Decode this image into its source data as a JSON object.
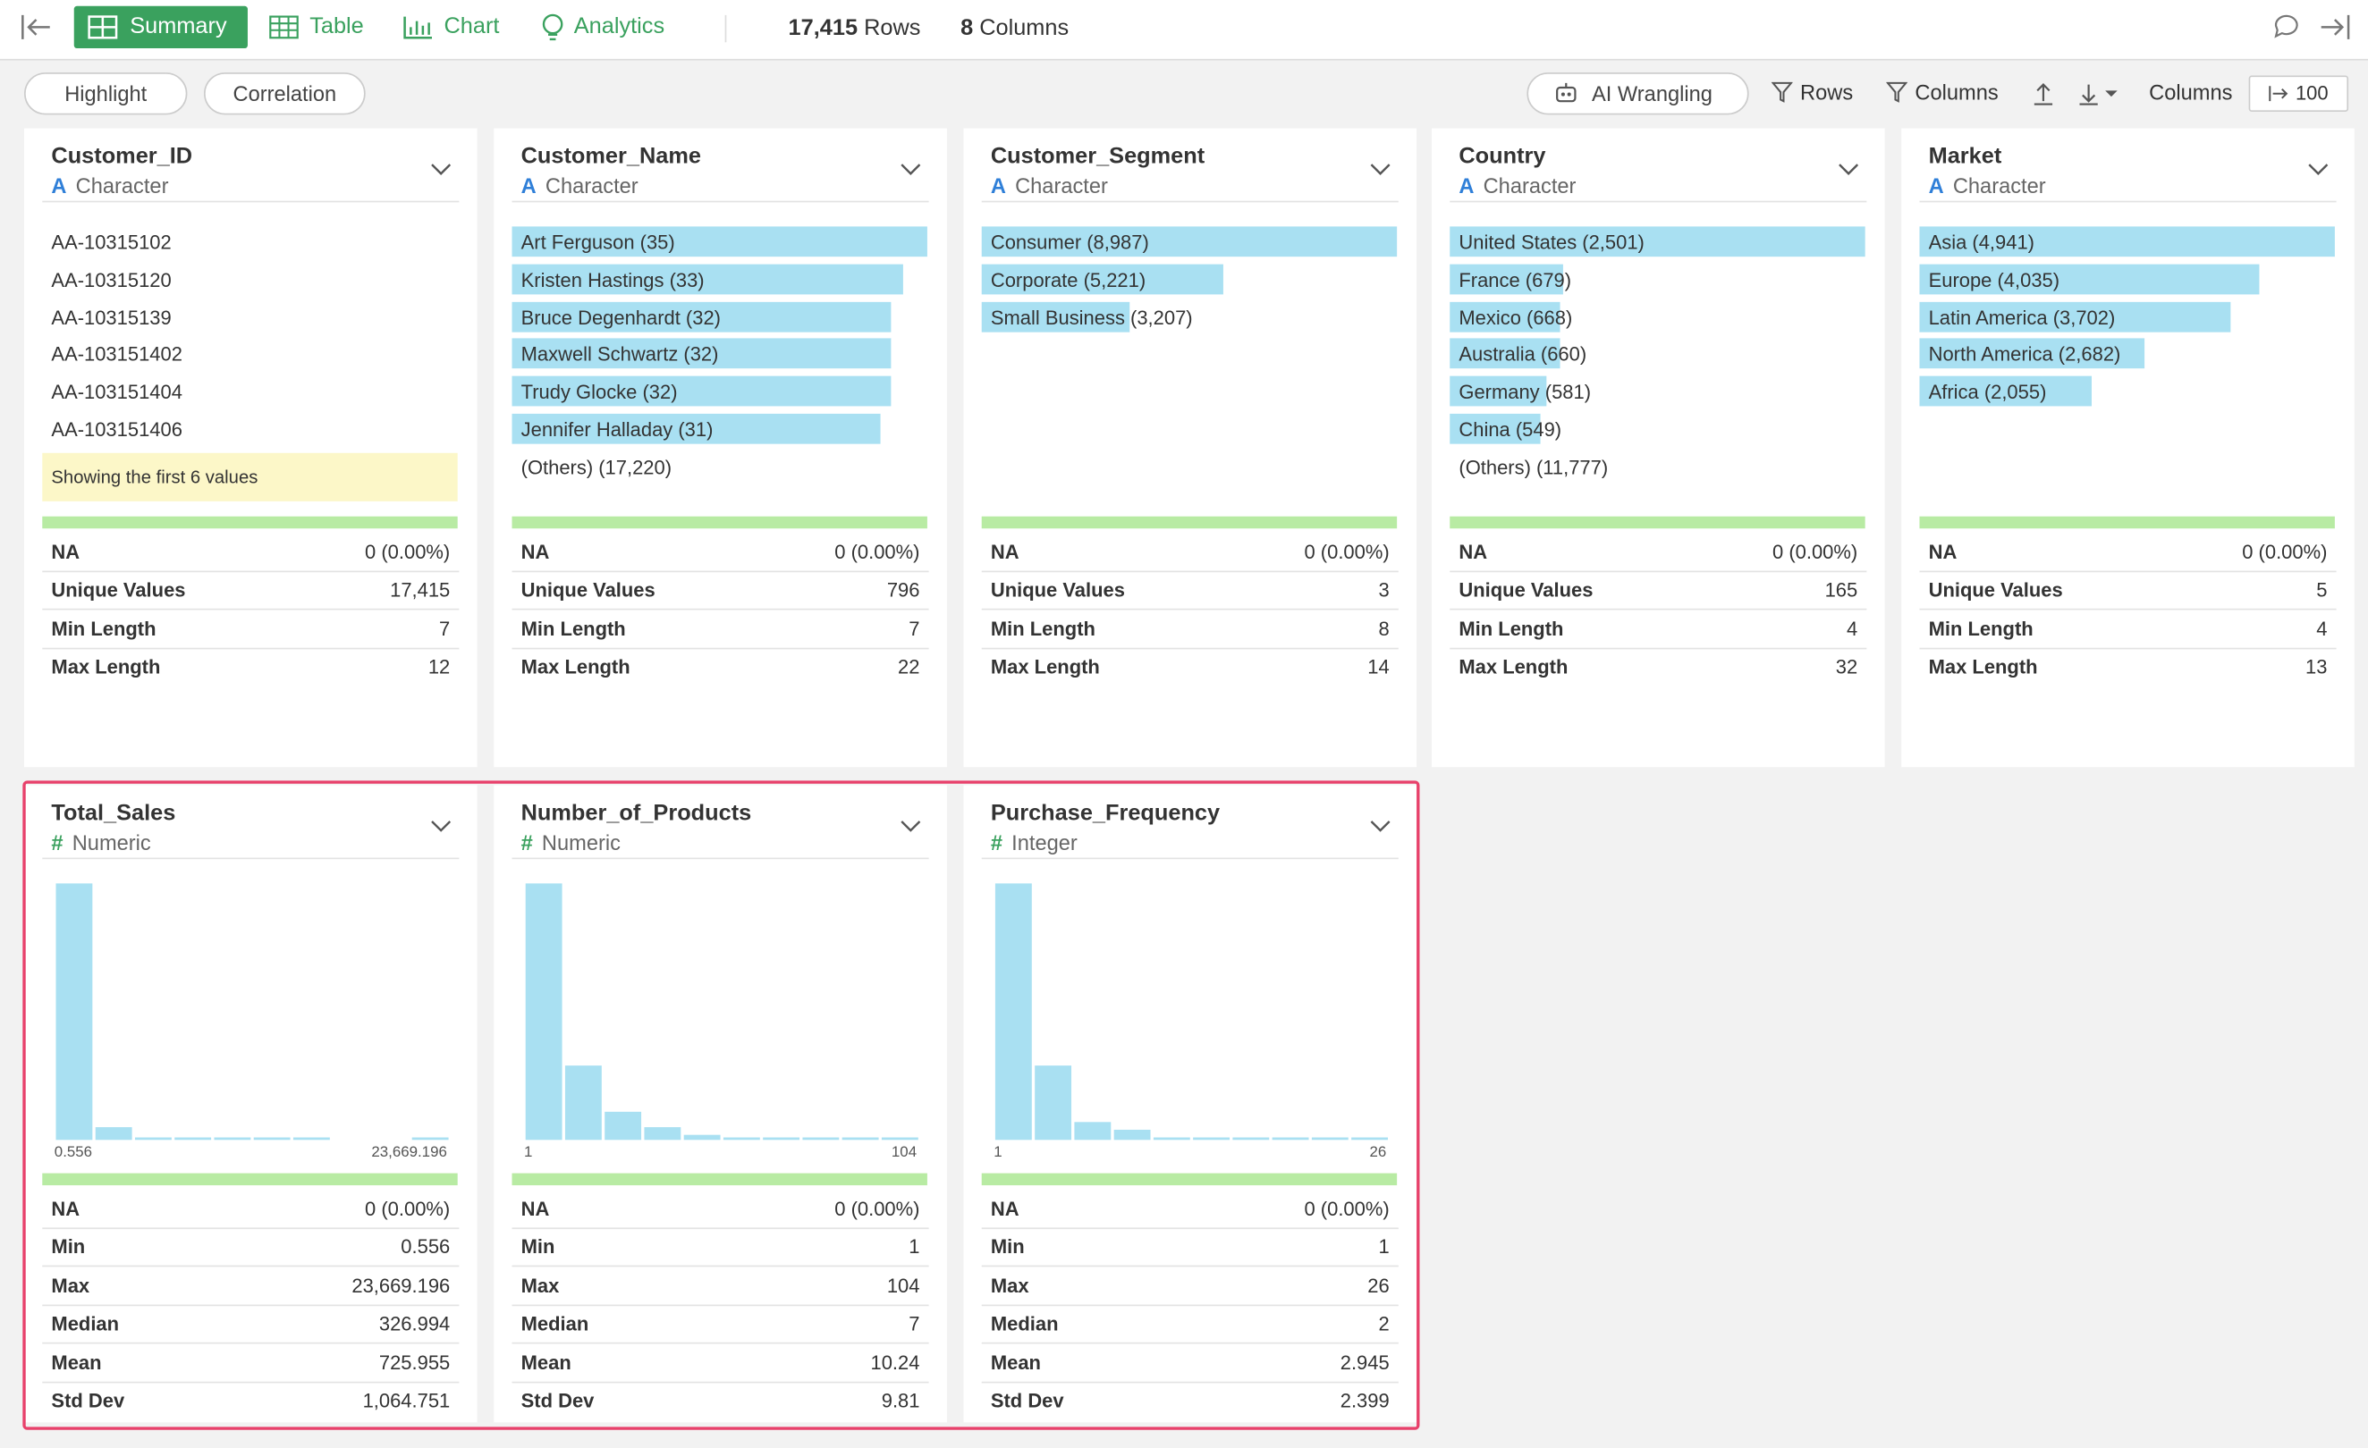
{
  "toolbar": {
    "tabs": [
      "Summary",
      "Table",
      "Chart",
      "Analytics"
    ],
    "row_count": "17,415",
    "rows_label": "Rows",
    "column_count": "8",
    "columns_label": "Columns"
  },
  "filters": [
    "Highlight",
    "Correlation"
  ],
  "actions": {
    "ai": "AI Wrangling",
    "rows": "Rows",
    "columns": "Columns",
    "columns_label": "Columns",
    "columns_value": "100"
  },
  "columns": [
    {
      "name": "Customer_ID",
      "type_icon": "A",
      "type": "Character",
      "values": [
        "AA-10315102",
        "AA-10315120",
        "AA-10315139",
        "AA-103151402",
        "AA-103151404",
        "AA-103151406"
      ],
      "note": "Showing the first 6 values",
      "stats": [
        [
          "NA",
          "0 (0.00%)"
        ],
        [
          "Unique Values",
          "17,415"
        ],
        [
          "Min Length",
          "7"
        ],
        [
          "Max Length",
          "12"
        ]
      ]
    },
    {
      "name": "Customer_Name",
      "type_icon": "A",
      "type": "Character",
      "top_values": [
        {
          "label": "Art Ferguson (35)",
          "value": 35
        },
        {
          "label": "Kristen Hastings (33)",
          "value": 33
        },
        {
          "label": "Bruce Degenhardt (32)",
          "value": 32
        },
        {
          "label": "Maxwell Schwartz (32)",
          "value": 32
        },
        {
          "label": "Trudy Glocke (32)",
          "value": 32
        },
        {
          "label": "Jennifer Halladay (31)",
          "value": 31
        }
      ],
      "others": "(Others) (17,220)",
      "stats": [
        [
          "NA",
          "0 (0.00%)"
        ],
        [
          "Unique Values",
          "796"
        ],
        [
          "Min Length",
          "7"
        ],
        [
          "Max Length",
          "22"
        ]
      ]
    },
    {
      "name": "Customer_Segment",
      "type_icon": "A",
      "type": "Character",
      "top_values": [
        {
          "label": "Consumer (8,987)",
          "value": 8987
        },
        {
          "label": "Corporate (5,221)",
          "value": 5221
        },
        {
          "label": "Small Business (3,207)",
          "value": 3207
        }
      ],
      "stats": [
        [
          "NA",
          "0 (0.00%)"
        ],
        [
          "Unique Values",
          "3"
        ],
        [
          "Min Length",
          "8"
        ],
        [
          "Max Length",
          "14"
        ]
      ]
    },
    {
      "name": "Country",
      "type_icon": "A",
      "type": "Character",
      "top_values": [
        {
          "label": "United States (2,501)",
          "value": 2501
        },
        {
          "label": "France (679)",
          "value": 679
        },
        {
          "label": "Mexico (668)",
          "value": 668
        },
        {
          "label": "Australia (660)",
          "value": 660
        },
        {
          "label": "Germany (581)",
          "value": 581
        },
        {
          "label": "China (549)",
          "value": 549
        }
      ],
      "others": "(Others) (11,777)",
      "stats": [
        [
          "NA",
          "0 (0.00%)"
        ],
        [
          "Unique Values",
          "165"
        ],
        [
          "Min Length",
          "4"
        ],
        [
          "Max Length",
          "32"
        ]
      ]
    },
    {
      "name": "Market",
      "type_icon": "A",
      "type": "Character",
      "top_values": [
        {
          "label": "Asia (4,941)",
          "value": 4941
        },
        {
          "label": "Europe (4,035)",
          "value": 4035
        },
        {
          "label": "Latin America (3,702)",
          "value": 3702
        },
        {
          "label": "North America (2,682)",
          "value": 2682
        },
        {
          "label": "Africa (2,055)",
          "value": 2055
        }
      ],
      "stats": [
        [
          "NA",
          "0 (0.00%)"
        ],
        [
          "Unique Values",
          "5"
        ],
        [
          "Min Length",
          "4"
        ],
        [
          "Max Length",
          "13"
        ]
      ]
    },
    {
      "name": "Total_Sales",
      "type_icon": "#",
      "type": "Numeric",
      "histogram": {
        "values": [
          100,
          5,
          1,
          1,
          1,
          1,
          1,
          0,
          0,
          1
        ],
        "range_labels": [
          "0.556",
          "23,669.196"
        ]
      },
      "stats": [
        [
          "NA",
          "0 (0.00%)"
        ],
        [
          "Min",
          "0.556"
        ],
        [
          "Max",
          "23,669.196"
        ],
        [
          "Median",
          "326.994"
        ],
        [
          "Mean",
          "725.955"
        ],
        [
          "Std Dev",
          "1,064.751"
        ]
      ]
    },
    {
      "name": "Number_of_Products",
      "type_icon": "#",
      "type": "Numeric",
      "histogram": {
        "values": [
          100,
          29,
          11,
          5,
          2,
          1,
          1,
          1,
          1,
          1
        ],
        "range_labels": [
          "1",
          "104"
        ]
      },
      "stats": [
        [
          "NA",
          "0 (0.00%)"
        ],
        [
          "Min",
          "1"
        ],
        [
          "Max",
          "104"
        ],
        [
          "Median",
          "7"
        ],
        [
          "Mean",
          "10.24"
        ],
        [
          "Std Dev",
          "9.81"
        ]
      ]
    },
    {
      "name": "Purchase_Frequency",
      "type_icon": "#",
      "type": "Integer",
      "histogram": {
        "values": [
          100,
          29,
          7,
          4,
          1,
          1,
          1,
          1,
          1,
          1
        ],
        "range_labels": [
          "1",
          "26"
        ]
      },
      "stats": [
        [
          "NA",
          "0 (0.00%)"
        ],
        [
          "Min",
          "1"
        ],
        [
          "Max",
          "26"
        ],
        [
          "Median",
          "2"
        ],
        [
          "Mean",
          "2.945"
        ],
        [
          "Std Dev",
          "2.399"
        ]
      ]
    }
  ]
}
